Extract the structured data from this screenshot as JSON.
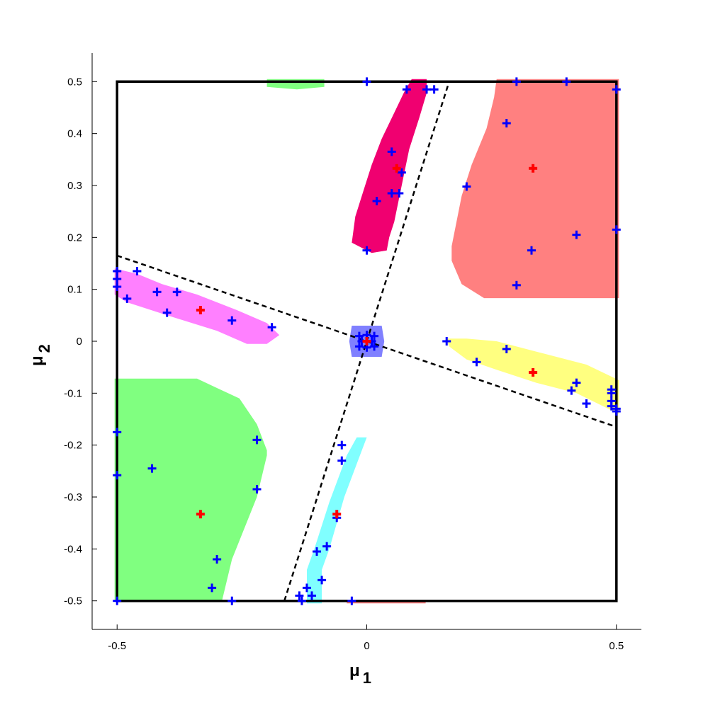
{
  "chart_data": {
    "type": "scatter",
    "title": "",
    "xlabel": {
      "symbol": "μ",
      "subscript": "1"
    },
    "ylabel": {
      "symbol": "μ",
      "subscript": "2"
    },
    "xlim": [
      -0.55,
      0.55
    ],
    "ylim": [
      -0.555,
      0.555
    ],
    "x_ticks": [
      -0.5,
      0,
      0.5
    ],
    "x_tick_labels": [
      "-0.5",
      "0",
      "0.5"
    ],
    "y_ticks": [
      0.5,
      0.4,
      0.3,
      0.2,
      0.1,
      0,
      -0.1,
      -0.2,
      -0.3,
      -0.4,
      -0.5
    ],
    "y_tick_labels": [
      "0.5",
      "0.4",
      "0.3",
      "0.2",
      "0.1",
      "0",
      "-0.1",
      "-0.2",
      "-0.3",
      "-0.4",
      "-0.5"
    ],
    "grid": false,
    "legend": "none",
    "colors": {
      "blue_marker": "#0000ff",
      "red_marker": "#ff0000",
      "frame": "#000000",
      "dashed": "#000000"
    },
    "boundary_square": [
      [
        -0.5,
        -0.5
      ],
      [
        0.5,
        -0.5
      ],
      [
        0.5,
        0.5
      ],
      [
        -0.5,
        0.5
      ]
    ],
    "dashed_lines": [
      {
        "from": [
          -0.5,
          0.165
        ],
        "to": [
          0.5,
          -0.165
        ]
      },
      {
        "from": [
          -0.165,
          -0.5
        ],
        "to": [
          0.165,
          0.5
        ]
      }
    ],
    "regions": [
      {
        "color": "#ff8080",
        "points": [
          [
            0.26,
            0.505
          ],
          [
            0.505,
            0.505
          ],
          [
            0.505,
            0.083
          ],
          [
            0.235,
            0.083
          ],
          [
            0.19,
            0.11
          ],
          [
            0.17,
            0.155
          ],
          [
            0.17,
            0.183
          ],
          [
            0.19,
            0.28
          ],
          [
            0.21,
            0.34
          ],
          [
            0.24,
            0.41
          ],
          [
            0.255,
            0.47
          ]
        ]
      },
      {
        "color": "#80ff80",
        "points": [
          [
            -0.505,
            -0.072
          ],
          [
            -0.34,
            -0.072
          ],
          [
            -0.3,
            -0.09
          ],
          [
            -0.255,
            -0.11
          ],
          [
            -0.22,
            -0.16
          ],
          [
            -0.2,
            -0.21
          ],
          [
            -0.2,
            -0.22
          ],
          [
            -0.22,
            -0.3
          ],
          [
            -0.27,
            -0.42
          ],
          [
            -0.29,
            -0.5
          ],
          [
            -0.505,
            -0.5
          ]
        ]
      },
      {
        "color": "#f00070",
        "points": [
          [
            0.09,
            0.505
          ],
          [
            0.12,
            0.505
          ],
          [
            0.12,
            0.478
          ],
          [
            0.105,
            0.43
          ],
          [
            0.085,
            0.37
          ],
          [
            0.07,
            0.3
          ],
          [
            0.055,
            0.23
          ],
          [
            0.045,
            0.2
          ],
          [
            0.04,
            0.175
          ],
          [
            0.01,
            0.17
          ],
          [
            -0.03,
            0.19
          ],
          [
            -0.023,
            0.24
          ],
          [
            -0.01,
            0.28
          ],
          [
            0.01,
            0.34
          ],
          [
            0.03,
            0.39
          ],
          [
            0.055,
            0.44
          ],
          [
            0.075,
            0.48
          ]
        ]
      },
      {
        "color": "#80ffff",
        "points": [
          [
            0,
            -0.185
          ],
          [
            -0.045,
            -0.3
          ],
          [
            -0.075,
            -0.4
          ],
          [
            -0.09,
            -0.44
          ],
          [
            -0.09,
            -0.505
          ],
          [
            -0.12,
            -0.505
          ],
          [
            -0.12,
            -0.44
          ],
          [
            -0.105,
            -0.4
          ],
          [
            -0.075,
            -0.31
          ],
          [
            -0.04,
            -0.22
          ],
          [
            -0.02,
            -0.185
          ]
        ]
      },
      {
        "color": "#ff80ff",
        "points": [
          [
            -0.505,
            0.14
          ],
          [
            -0.46,
            0.13
          ],
          [
            -0.41,
            0.11
          ],
          [
            -0.34,
            0.09
          ],
          [
            -0.26,
            0.06
          ],
          [
            -0.2,
            0.035
          ],
          [
            -0.175,
            0.012
          ],
          [
            -0.2,
            -0.005
          ],
          [
            -0.24,
            -0.005
          ],
          [
            -0.3,
            0.02
          ],
          [
            -0.4,
            0.05
          ],
          [
            -0.48,
            0.075
          ],
          [
            -0.505,
            0.09
          ]
        ]
      },
      {
        "color": "#ffff80",
        "points": [
          [
            0.505,
            -0.075
          ],
          [
            0.44,
            -0.045
          ],
          [
            0.34,
            -0.02
          ],
          [
            0.26,
            0
          ],
          [
            0.2,
            0.005
          ],
          [
            0.16,
            0.005
          ],
          [
            0.165,
            -0.01
          ],
          [
            0.2,
            -0.035
          ],
          [
            0.26,
            -0.055
          ],
          [
            0.34,
            -0.08
          ],
          [
            0.42,
            -0.1
          ],
          [
            0.505,
            -0.14
          ]
        ]
      },
      {
        "color": "#80ff80",
        "points": [
          [
            -0.2,
            0.505
          ],
          [
            -0.085,
            0.505
          ],
          [
            -0.085,
            0.49
          ],
          [
            -0.14,
            0.485
          ],
          [
            -0.2,
            0.49
          ]
        ]
      },
      {
        "color": "#ff8080",
        "points": [
          [
            -0.04,
            -0.498
          ],
          [
            0.118,
            -0.498
          ],
          [
            0.118,
            -0.505
          ],
          [
            -0.04,
            -0.505
          ]
        ]
      },
      {
        "color": "#8080ff",
        "points": [
          [
            -0.03,
            0.03
          ],
          [
            0.03,
            0.03
          ],
          [
            0.035,
            0
          ],
          [
            0.03,
            -0.03
          ],
          [
            -0.03,
            -0.03
          ],
          [
            -0.035,
            0
          ]
        ]
      }
    ],
    "red_points": [
      [
        0.333,
        0.333
      ],
      [
        0.06,
        0.333
      ],
      [
        -0.333,
        0.06
      ],
      [
        0.333,
        -0.06
      ],
      [
        -0.06,
        -0.333
      ],
      [
        -0.333,
        -0.333
      ],
      [
        0,
        0
      ]
    ],
    "blue_points": [
      [
        0,
        0.5
      ],
      [
        0.3,
        0.5
      ],
      [
        0.4,
        0.5
      ],
      [
        0.5,
        0.485
      ],
      [
        0.12,
        0.485
      ],
      [
        0.135,
        0.485
      ],
      [
        0.08,
        0.485
      ],
      [
        0.28,
        0.42
      ],
      [
        0.05,
        0.365
      ],
      [
        0.07,
        0.325
      ],
      [
        0.05,
        0.285
      ],
      [
        0.065,
        0.285
      ],
      [
        0.2,
        0.298
      ],
      [
        0.02,
        0.27
      ],
      [
        0.42,
        0.205
      ],
      [
        0.5,
        0.215
      ],
      [
        0,
        0.175
      ],
      [
        0.33,
        0.175
      ],
      [
        0.3,
        0.108
      ],
      [
        -0.5,
        0.135
      ],
      [
        -0.5,
        0.12
      ],
      [
        -0.5,
        0.105
      ],
      [
        -0.46,
        0.135
      ],
      [
        -0.48,
        0.082
      ],
      [
        -0.42,
        0.095
      ],
      [
        -0.38,
        0.095
      ],
      [
        -0.4,
        0.055
      ],
      [
        -0.27,
        0.04
      ],
      [
        -0.19,
        0.027
      ],
      [
        -0.01,
        0
      ],
      [
        0.01,
        0
      ],
      [
        0,
        0.012
      ],
      [
        0,
        -0.012
      ],
      [
        -0.015,
        0.01
      ],
      [
        0.015,
        0.01
      ],
      [
        -0.015,
        -0.01
      ],
      [
        0.015,
        -0.01
      ],
      [
        0.16,
        0
      ],
      [
        0.28,
        -0.015
      ],
      [
        0.22,
        -0.04
      ],
      [
        0.41,
        -0.095
      ],
      [
        0.42,
        -0.08
      ],
      [
        0.44,
        -0.12
      ],
      [
        0.49,
        -0.093
      ],
      [
        0.49,
        -0.1
      ],
      [
        0.49,
        -0.115
      ],
      [
        0.49,
        -0.125
      ],
      [
        0.5,
        -0.13
      ],
      [
        0.5,
        -0.135
      ],
      [
        -0.5,
        -0.175
      ],
      [
        -0.43,
        -0.245
      ],
      [
        -0.5,
        -0.258
      ],
      [
        -0.22,
        -0.19
      ],
      [
        -0.22,
        -0.285
      ],
      [
        -0.3,
        -0.42
      ],
      [
        -0.31,
        -0.475
      ],
      [
        -0.27,
        -0.5
      ],
      [
        -0.5,
        -0.5
      ],
      [
        -0.05,
        -0.2
      ],
      [
        -0.05,
        -0.23
      ],
      [
        -0.06,
        -0.34
      ],
      [
        -0.08,
        -0.395
      ],
      [
        -0.09,
        -0.46
      ],
      [
        -0.1,
        -0.405
      ],
      [
        -0.12,
        -0.475
      ],
      [
        -0.11,
        -0.49
      ],
      [
        -0.13,
        -0.5
      ],
      [
        -0.135,
        -0.49
      ],
      [
        -0.03,
        -0.5
      ]
    ]
  }
}
